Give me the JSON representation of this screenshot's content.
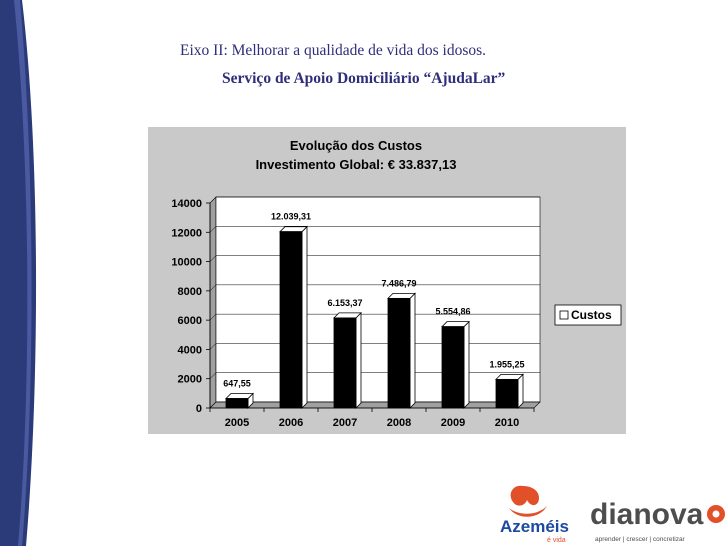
{
  "slide": {
    "heading": "Eixo II: Melhorar a qualidade de vida dos idosos.",
    "subheading": "Serviço de Apoio Domiciliário “AjudaLar”"
  },
  "colors": {
    "band_dark": "#2b3a78",
    "band_mid": "#4a5aa0",
    "text_navy": "#2e2e7a",
    "chart_bg": "#c9c9c9",
    "plot_bg": "#ffffff",
    "bar_fill": "#000000",
    "logo_orange": "#e2502a",
    "logo_blue": "#1b4aa0",
    "dianova_gray": "#4d4d4d"
  },
  "chart_data": {
    "type": "bar",
    "title": "Evolução dos Custos",
    "subtitle": "Investimento Global: € 33.837,13",
    "categories": [
      "2005",
      "2006",
      "2007",
      "2008",
      "2009",
      "2010"
    ],
    "series": [
      {
        "name": "Custos",
        "values": [
          647.55,
          12039.31,
          6153.37,
          7486.79,
          5554.86,
          1955.25
        ],
        "labels": [
          "647,55",
          "12.039,31",
          "6.153,37",
          "7.486,79",
          "5.554,86",
          "1.955,25"
        ]
      }
    ],
    "ylim": [
      0,
      14000
    ],
    "yticks": [
      0,
      2000,
      4000,
      6000,
      8000,
      10000,
      12000,
      14000
    ],
    "grid": true,
    "legend_position": "right",
    "style": "3d"
  },
  "logos": {
    "azemeis_name": "Azeméis",
    "azemeis_tagline": "é vida",
    "dianova_name": "dianova",
    "dianova_tagline": "aprender | crescer | concretizar"
  }
}
